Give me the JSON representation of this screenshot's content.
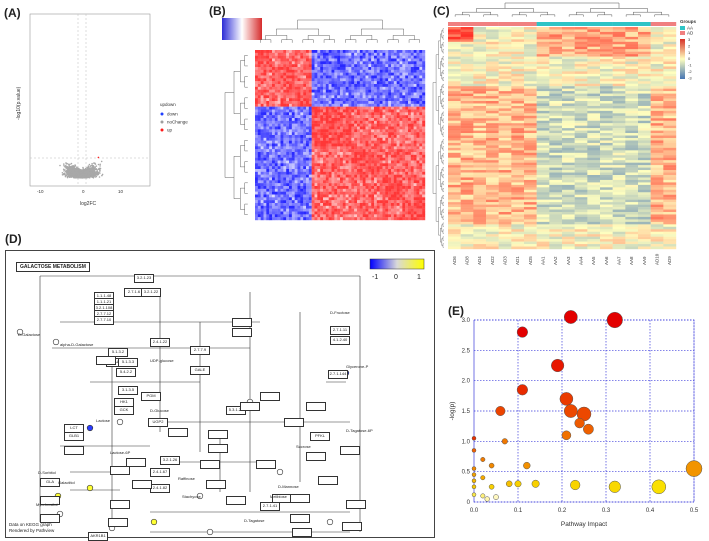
{
  "panels": {
    "a": {
      "label": "(A)"
    },
    "b": {
      "label": "(B)"
    },
    "c": {
      "label": "(C)"
    },
    "d": {
      "label": "(D)"
    },
    "e": {
      "label": "(E)"
    }
  },
  "volcano": {
    "ylabel": "-log10(p.value)",
    "xlabel": "log2FC",
    "legend_title": "updown",
    "legend": [
      {
        "name": "down",
        "color": "#1f3fff"
      },
      {
        "name": "noChange",
        "color": "#9e9e9e"
      },
      {
        "name": "up",
        "color": "#ff1a1a"
      }
    ],
    "xticks": [
      "-10",
      "0",
      "10"
    ]
  },
  "heatmap_c": {
    "legend_title": "Groups",
    "groups": [
      {
        "name": "AA",
        "color": "#2ec4c6"
      },
      {
        "name": "AD",
        "color": "#f08080"
      }
    ],
    "scale_ticks": [
      "3",
      "2",
      "1",
      "0",
      "-1",
      "-2",
      "-3"
    ],
    "columns": [
      "AD6",
      "AD8",
      "AD4",
      "AD2",
      "AD3",
      "AD1",
      "AD5",
      "AA1",
      "AA2",
      "AA3",
      "AA4",
      "AA5",
      "AA6",
      "AA7",
      "AA8",
      "AA9",
      "AD10",
      "AD9"
    ]
  },
  "kegg": {
    "title": "GALACTOSE METABOLISM",
    "scale_ticks": [
      "-1",
      "0",
      "1"
    ],
    "footer": [
      "Data on KEGG graph",
      "Rendered by Pathview"
    ],
    "boxes": [
      "3.2.1.23",
      "2.7.1.6",
      "3.2.1.22",
      "1.1.1.48",
      "1.1.1.21",
      "3.2.1.108",
      "2.7.7.12",
      "2.7.7.10",
      "5.1.3.2",
      "2.4.1.22",
      "2.7.7.9",
      "5.4.2.2",
      "3.1.3.5",
      "GLA",
      "HK1",
      "GCK",
      "GALT",
      "GALE",
      "UGP2",
      "PGM",
      "LCT",
      "GLB1",
      "AKR1B1",
      "2.4.1.67",
      "2.4.1.82",
      "3.2.1.26",
      "2.7.1.11",
      "4.1.2.40",
      "2.7.1.144",
      "5.3.1.26",
      "5.1.3.3",
      "PFKL",
      "2.7.1.41"
    ],
    "labels": [
      "D-Galactose",
      "alpha-D-Galactose",
      "Galactitol",
      "Lactose",
      "Sucrose",
      "Raffinose",
      "Stachyose",
      "Melibiose",
      "UDP-glucose",
      "D-Glucose",
      "Glycerone-P",
      "D-Tagatose",
      "D-Sorbitol",
      "Myo-Inositol",
      "D-Fructose",
      "Lactose-6P",
      "D-Tagatose-6P",
      "D-Mannose"
    ]
  },
  "chart_data": {
    "type": "scatter",
    "xlabel": "Pathway Impact",
    "ylabel": "-log(p)",
    "xlim": [
      0,
      0.5
    ],
    "ylim": [
      0,
      3.0
    ],
    "xticks": [
      0.0,
      0.1,
      0.2,
      0.3,
      0.4,
      0.5
    ],
    "yticks": [
      0,
      0.5,
      1.0,
      1.5,
      2.0,
      2.5,
      3.0
    ],
    "grid": true,
    "points": [
      {
        "x": 0.22,
        "y": 3.05,
        "color": "#e30000"
      },
      {
        "x": 0.32,
        "y": 3.0,
        "color": "#e30000"
      },
      {
        "x": 0.11,
        "y": 2.8,
        "color": "#e30000"
      },
      {
        "x": 0.19,
        "y": 2.25,
        "color": "#e81800"
      },
      {
        "x": 0.11,
        "y": 1.85,
        "color": "#e82a00"
      },
      {
        "x": 0.21,
        "y": 1.7,
        "color": "#ea3a00"
      },
      {
        "x": 0.22,
        "y": 1.5,
        "color": "#ec4800"
      },
      {
        "x": 0.25,
        "y": 1.45,
        "color": "#ec4800"
      },
      {
        "x": 0.24,
        "y": 1.3,
        "color": "#ee5a00"
      },
      {
        "x": 0.26,
        "y": 1.2,
        "color": "#ee6000"
      },
      {
        "x": 0.21,
        "y": 1.1,
        "color": "#f07000"
      },
      {
        "x": 0.06,
        "y": 1.5,
        "color": "#ec4400"
      },
      {
        "x": 0.07,
        "y": 1.0,
        "color": "#f07800"
      },
      {
        "x": 0.0,
        "y": 1.05,
        "color": "#e83000"
      },
      {
        "x": 0.0,
        "y": 0.85,
        "color": "#f06000"
      },
      {
        "x": 0.02,
        "y": 0.7,
        "color": "#f07a00"
      },
      {
        "x": 0.04,
        "y": 0.6,
        "color": "#f28800"
      },
      {
        "x": 0.0,
        "y": 0.55,
        "color": "#f28800"
      },
      {
        "x": 0.12,
        "y": 0.6,
        "color": "#f29000"
      },
      {
        "x": 0.0,
        "y": 0.45,
        "color": "#f4a000"
      },
      {
        "x": 0.02,
        "y": 0.4,
        "color": "#f4a800"
      },
      {
        "x": 0.0,
        "y": 0.35,
        "color": "#f6b800"
      },
      {
        "x": 0.5,
        "y": 0.55,
        "color": "#f29400"
      },
      {
        "x": 0.0,
        "y": 0.25,
        "color": "#f8c800"
      },
      {
        "x": 0.04,
        "y": 0.25,
        "color": "#f8d000"
      },
      {
        "x": 0.08,
        "y": 0.3,
        "color": "#f6c000"
      },
      {
        "x": 0.1,
        "y": 0.3,
        "color": "#f8d000"
      },
      {
        "x": 0.14,
        "y": 0.3,
        "color": "#f8d000"
      },
      {
        "x": 0.23,
        "y": 0.28,
        "color": "#f8d400"
      },
      {
        "x": 0.32,
        "y": 0.25,
        "color": "#f8d800"
      },
      {
        "x": 0.42,
        "y": 0.25,
        "color": "#fae000"
      },
      {
        "x": 0.0,
        "y": 0.12,
        "color": "#fbe84a"
      },
      {
        "x": 0.02,
        "y": 0.1,
        "color": "#fdf07a"
      },
      {
        "x": 0.03,
        "y": 0.05,
        "color": "#fff6b0"
      },
      {
        "x": 0.05,
        "y": 0.08,
        "color": "#fff8c0"
      }
    ]
  }
}
